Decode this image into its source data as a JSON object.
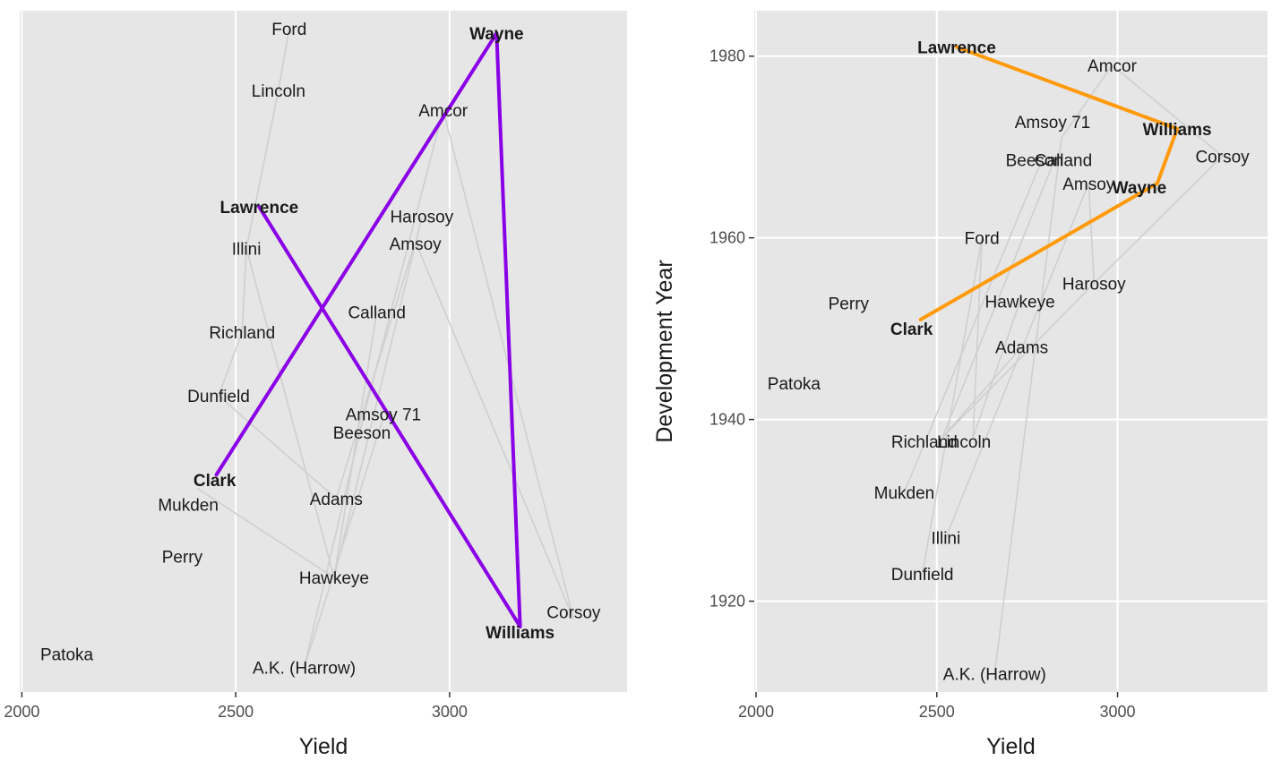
{
  "colors": {
    "panel_bg": "#e6e6e6",
    "grid": "#ffffff",
    "connector": "#cfcfcf",
    "left_highlight": "#8a00e6",
    "right_highlight": "#ff9a0a"
  },
  "chart_data": [
    {
      "type": "scatter",
      "title": "",
      "xlabel": "Yield",
      "ylabel": "",
      "xlim": [
        1995,
        3415
      ],
      "ylim": [
        0,
        1
      ],
      "xticks": [
        "2000",
        "2500",
        "3000"
      ],
      "grid": true,
      "y_axis_shown": false,
      "points": [
        {
          "label": "Ford",
          "x": 2625,
          "y": 0.974
        },
        {
          "label": "Wayne",
          "x": 3110,
          "y": 0.967
        },
        {
          "label": "Lincoln",
          "x": 2600,
          "y": 0.883
        },
        {
          "label": "Amcor",
          "x": 2985,
          "y": 0.854
        },
        {
          "label": "Lawrence",
          "x": 2555,
          "y": 0.712
        },
        {
          "label": "Harosoy",
          "x": 2935,
          "y": 0.696
        },
        {
          "label": "Amsoy",
          "x": 2920,
          "y": 0.661
        },
        {
          "label": "Illini",
          "x": 2525,
          "y": 0.651
        },
        {
          "label": "Calland",
          "x": 2830,
          "y": 0.558
        },
        {
          "label": "Richland",
          "x": 2515,
          "y": 0.528
        },
        {
          "label": "Dunfield",
          "x": 2460,
          "y": 0.435
        },
        {
          "label": "Amsoy 71",
          "x": 2845,
          "y": 0.403
        },
        {
          "label": "Beeson",
          "x": 2795,
          "y": 0.394
        },
        {
          "label": "Clark",
          "x": 2455,
          "y": 0.319
        },
        {
          "label": "Mukden",
          "x": 2410,
          "y": 0.299
        },
        {
          "label": "Adams",
          "x": 2735,
          "y": 0.284
        },
        {
          "label": "Perry",
          "x": 2375,
          "y": 0.199
        },
        {
          "label": "Hawkeye",
          "x": 2730,
          "y": 0.168
        },
        {
          "label": "Corsoy",
          "x": 3290,
          "y": 0.107
        },
        {
          "label": "Williams",
          "x": 3165,
          "y": 0.096
        },
        {
          "label": "Patoka",
          "x": 2105,
          "y": 0.056
        },
        {
          "label": "A.K. (Harrow)",
          "x": 2660,
          "y": 0.036
        }
      ],
      "highlighted": [
        "Wayne",
        "Lawrence",
        "Clark",
        "Williams"
      ],
      "highlight_path": [
        "Clark",
        "Wayne",
        "Williams",
        "Lawrence"
      ]
    },
    {
      "type": "scatter",
      "title": "",
      "xlabel": "Yield",
      "ylabel": "Development Year",
      "xlim": [
        1995,
        3415
      ],
      "ylim": [
        1910,
        1985
      ],
      "xticks": [
        "2000",
        "2500",
        "3000"
      ],
      "yticks": [
        "1920",
        "1940",
        "1960",
        "1980"
      ],
      "grid": true,
      "points": [
        {
          "label": "Lawrence",
          "x": 2555,
          "y": 1981
        },
        {
          "label": "Amcor",
          "x": 2985,
          "y": 1979
        },
        {
          "label": "Williams",
          "x": 3165,
          "y": 1972
        },
        {
          "label": "Amsoy 71",
          "x": 2845,
          "y": 1971
        },
        {
          "label": "Beeson",
          "x": 2795,
          "y": 1969
        },
        {
          "label": "Calland",
          "x": 2830,
          "y": 1969
        },
        {
          "label": "Corsoy",
          "x": 3290,
          "y": 1969
        },
        {
          "label": "Amsoy",
          "x": 2920,
          "y": 1966
        },
        {
          "label": "Wayne",
          "x": 3110,
          "y": 1966
        },
        {
          "label": "Ford",
          "x": 2625,
          "y": 1960
        },
        {
          "label": "Harosoy",
          "x": 2935,
          "y": 1955
        },
        {
          "label": "Perry",
          "x": 2375,
          "y": 1953
        },
        {
          "label": "Hawkeye",
          "x": 2730,
          "y": 1953
        },
        {
          "label": "Clark",
          "x": 2455,
          "y": 1951
        },
        {
          "label": "Adams",
          "x": 2735,
          "y": 1948
        },
        {
          "label": "Patoka",
          "x": 2105,
          "y": 1944
        },
        {
          "label": "Richland",
          "x": 2515,
          "y": 1938
        },
        {
          "label": "Lincoln",
          "x": 2600,
          "y": 1938
        },
        {
          "label": "Mukden",
          "x": 2410,
          "y": 1932
        },
        {
          "label": "Illini",
          "x": 2525,
          "y": 1927
        },
        {
          "label": "Dunfield",
          "x": 2460,
          "y": 1923
        },
        {
          "label": "A.K. (Harrow)",
          "x": 2660,
          "y": 1912
        }
      ],
      "highlighted": [
        "Lawrence",
        "Williams",
        "Wayne",
        "Clark"
      ],
      "highlight_path": [
        "Lawrence",
        "Williams",
        "Wayne",
        "Clark"
      ]
    }
  ]
}
